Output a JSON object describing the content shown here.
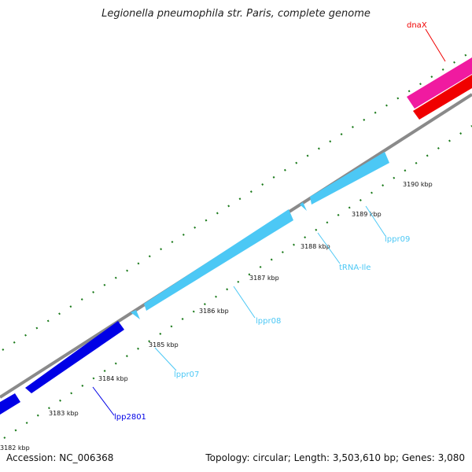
{
  "title": "Legionella pneumophila str. Paris, complete genome",
  "footer": {
    "accession": "Accession: NC_006368",
    "stats": "Topology: circular; Length: 3,503,610 bp; Genes: 3,080"
  },
  "colors": {
    "backbone": "#8a8a8a",
    "ticks": "#1a7a1a",
    "blue_gene": "#0000e6",
    "cyan_gene": "#4cc8f5",
    "magenta_gene": "#f01aa0",
    "red_gene": "#f00000"
  },
  "ticks": {
    "kbp_values": [
      3182,
      3183,
      3184,
      3185,
      3186,
      3187,
      3188,
      3189,
      3190
    ],
    "labels": [
      "3182 kbp",
      "3183 kbp",
      "3184 kbp",
      "3185 kbp",
      "3186 kbp",
      "3187 kbp",
      "3188 kbp",
      "3189 kbp",
      "3190 kbp"
    ]
  },
  "genes": [
    {
      "label": "lpp2801",
      "color": "blue"
    },
    {
      "label": "lppr07",
      "color": "cyan"
    },
    {
      "label": "lppr08",
      "color": "cyan"
    },
    {
      "label": "tRNA-Ile",
      "color": "cyan"
    },
    {
      "label": "lppr09",
      "color": "cyan"
    },
    {
      "label": "dnaX",
      "color": "red"
    }
  ]
}
